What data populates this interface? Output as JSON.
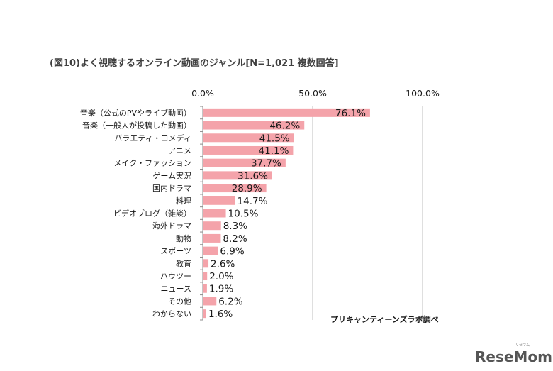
{
  "chart_data": {
    "type": "bar",
    "orientation": "horizontal",
    "title": "(図10)よく視聴するオンライン動画のジャンル[N=1,021 複数回答]",
    "categories": [
      "音楽（公式のPVやライブ動画）",
      "音楽（一般人が投稿した動画）",
      "バラエティ・コメディ",
      "アニメ",
      "メイク・ファッション",
      "ゲーム実況",
      "国内ドラマ",
      "料理",
      "ビデオブログ（雑談）",
      "海外ドラマ",
      "動物",
      "スポーツ",
      "教育",
      "ハウツー",
      "ニュース",
      "その他",
      "わからない"
    ],
    "values": [
      76.1,
      46.2,
      41.5,
      41.1,
      37.7,
      31.6,
      28.9,
      14.7,
      10.5,
      8.3,
      8.2,
      6.9,
      2.6,
      2.0,
      1.9,
      6.2,
      1.6
    ],
    "value_labels": [
      "76.1%",
      "46.2%",
      "41.5%",
      "41.1%",
      "37.7%",
      "31.6%",
      "28.9%",
      "14.7%",
      "10.5%",
      "8.3%",
      "8.2%",
      "6.9%",
      "2.6%",
      "2.0%",
      "1.9%",
      "6.2%",
      "1.6%"
    ],
    "xlim": [
      0,
      100
    ],
    "xticks": [
      0,
      50,
      100
    ],
    "xtick_labels": [
      "0.0%",
      "50.0%",
      "100.0%"
    ],
    "tick_position": "top",
    "grid": true,
    "bar_color": "#f4a3aa",
    "source": "プリキャンティーンズラボ調べ"
  },
  "watermark": "ReseMom"
}
